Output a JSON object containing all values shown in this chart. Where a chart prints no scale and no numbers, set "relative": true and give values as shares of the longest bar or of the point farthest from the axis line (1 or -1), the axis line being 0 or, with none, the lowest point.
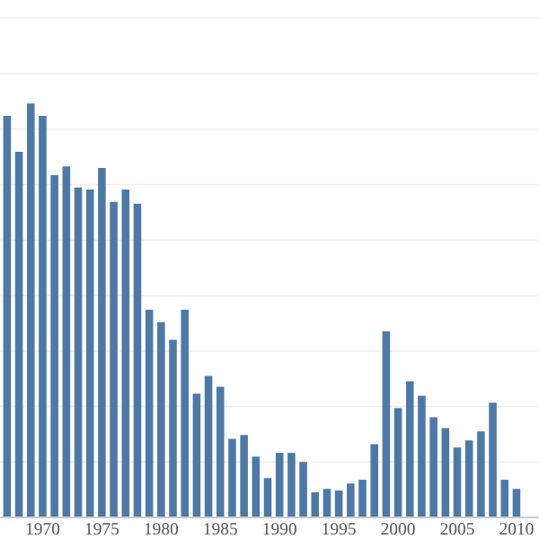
{
  "chart_data": {
    "type": "bar",
    "relative": true,
    "color": "#4e79a7",
    "grid": "y",
    "categories": [
      null,
      null,
      null,
      "1970",
      null,
      null,
      null,
      null,
      "1975",
      null,
      null,
      null,
      null,
      "1980",
      null,
      null,
      null,
      null,
      "1985",
      null,
      null,
      null,
      null,
      "1990",
      null,
      null,
      null,
      null,
      "1995",
      null,
      null,
      null,
      null,
      "2000",
      null,
      null,
      null,
      null,
      "2005",
      null,
      null,
      null,
      null,
      "2010"
    ],
    "values": [
      0.97,
      0.883,
      1,
      0.97,
      0.827,
      0.848,
      0.797,
      0.792,
      0.844,
      0.762,
      0.792,
      0.758,
      0.502,
      0.472,
      0.429,
      0.502,
      0.299,
      0.342,
      0.316,
      0.19,
      0.199,
      0.147,
      0.095,
      0.156,
      0.156,
      0.134,
      0.061,
      0.069,
      0.065,
      0.082,
      0.091,
      0.177,
      0.45,
      0.264,
      0.329,
      0.294,
      0.242,
      0.216,
      0.169,
      0.186,
      0.208,
      0.277,
      0.091,
      0.069
    ]
  }
}
